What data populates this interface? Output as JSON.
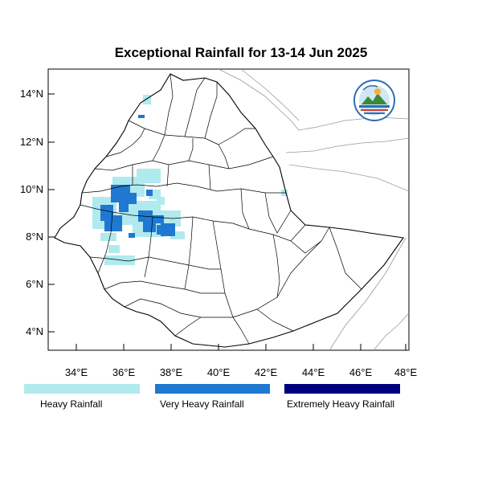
{
  "title": "Exceptional Rainfall for 13-14 Jun 2025",
  "lat_ticks": [
    "14°N",
    "12°N",
    "10°N",
    "8°N",
    "6°N",
    "4°N"
  ],
  "lon_ticks": [
    "34°E",
    "36°E",
    "38°E",
    "40°E",
    "42°E",
    "44°E",
    "46°E",
    "48°E"
  ],
  "legend": [
    {
      "label": "Heavy Rainfall",
      "color": "#b0eaee"
    },
    {
      "label": "Very Heavy Rainfall",
      "color": "#1f78d1"
    },
    {
      "label": "Extremely Heavy Rainfall",
      "color": "#000080"
    }
  ],
  "logo": {
    "icon": "meteorology-agency-logo"
  }
}
